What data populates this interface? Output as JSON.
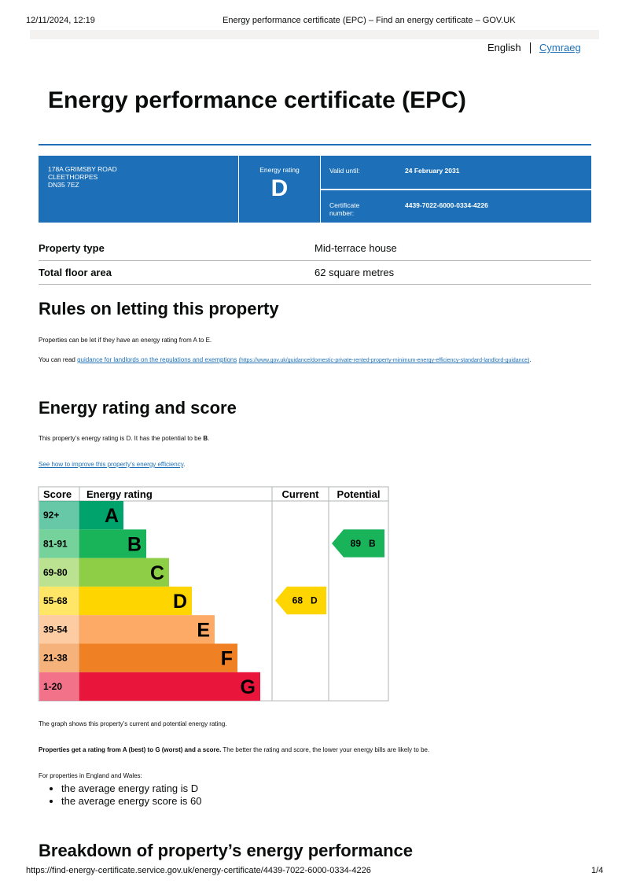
{
  "browser_header": {
    "datetime": "12/11/2024, 12:19",
    "page_title": "Energy performance certificate (EPC) – Find an energy certificate – GOV.UK"
  },
  "language": {
    "english": "English",
    "cymraeg": "Cymraeg"
  },
  "title": "Energy performance certificate (EPC)",
  "summary": {
    "address": [
      "178A GRIMSBY ROAD",
      "CLEETHORPES",
      "DN35 7EZ"
    ],
    "rating_label": "Energy rating",
    "rating": "D",
    "valid_until_label": "Valid until:",
    "valid_until": "24 February 2031",
    "certificate_label": "Certificate number:",
    "certificate_number": "4439-7022-6000-0334-4226"
  },
  "property": [
    {
      "label": "Property type",
      "value": "Mid-terrace house"
    },
    {
      "label": "Total floor area",
      "value": "62 square metres"
    }
  ],
  "rules": {
    "heading": "Rules on letting this property",
    "text": "Properties can be let if they have an energy rating from A to E.",
    "read_prefix": "You can read",
    "link": "guidance for landlords on the regulations and exemptions",
    "url": "(https://www.gov.uk/guidance/domestic-private-rented-property-minimum-energy-efficiency-standard-landlord-guidance)",
    "end": "."
  },
  "rating_section": {
    "heading": "Energy rating and score",
    "text_prefix": "This property’s energy rating is D. It has the potential to be",
    "text_bold": "B",
    "text_end": ".",
    "link": "See how to improve this property’s energy efficiency",
    "link_end": "."
  },
  "rating_chart": {
    "headers": [
      "Score",
      "Energy rating",
      "Current",
      "Potential"
    ],
    "bands": [
      {
        "score": "92+",
        "letter": "A",
        "color": "#00a36b"
      },
      {
        "score": "81-91",
        "letter": "B",
        "color": "#19b459"
      },
      {
        "score": "69-80",
        "letter": "C",
        "color": "#8dce46"
      },
      {
        "score": "55-68",
        "letter": "D",
        "color": "#ffd500"
      },
      {
        "score": "39-54",
        "letter": "E",
        "color": "#fcaa65"
      },
      {
        "score": "21-38",
        "letter": "F",
        "color": "#ef8023"
      },
      {
        "score": "1-20",
        "letter": "G",
        "color": "#e9153b"
      }
    ],
    "current": {
      "score": 68,
      "letter": "D"
    },
    "potential": {
      "score": 89,
      "letter": "B"
    }
  },
  "after_chart": {
    "graph_note": "The graph shows this property’s current and potential energy rating.",
    "bands_bold": "Properties get a rating from A (best) to G (worst) and a score.",
    "bands_text": "The better the rating and score, the lower your energy bills are likely to be.",
    "average_intro": "For properties in England and Wales:",
    "bullets": [
      "the average energy rating is D",
      "the average energy score is 60"
    ]
  },
  "breakdown_heading": "Breakdown of property’s energy performance",
  "footer": {
    "url": "https://find-energy-certificate.service.gov.uk/energy-certificate/4439-7022-6000-0334-4226",
    "page": "1/4"
  }
}
